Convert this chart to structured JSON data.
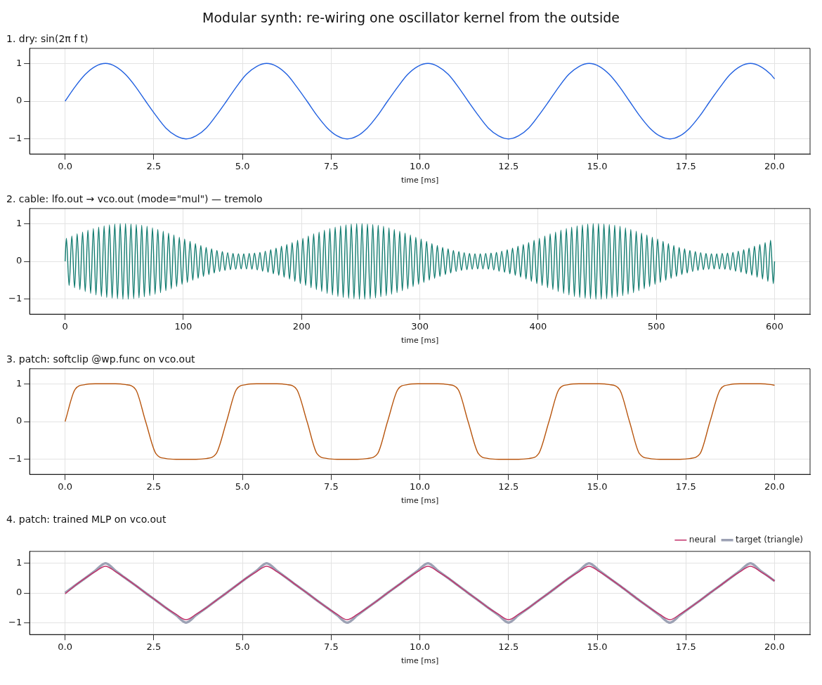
{
  "chart_data": [
    {
      "type": "line",
      "title": "1. dry: sin(2π f t)",
      "xlabel": "time [ms]",
      "annotations": [
        "Modular synth: re-wiring one oscillator kernel from the outside"
      ],
      "x": [
        0,
        0.28,
        0.57,
        0.85,
        1.14,
        1.42,
        1.7,
        1.99,
        2.27,
        2.56,
        2.84,
        3.13,
        3.41,
        3.69,
        3.98,
        4.26,
        4.55,
        4.83,
        5.11,
        5.4,
        5.68,
        5.97,
        6.25,
        6.53,
        6.82,
        7.1,
        7.39,
        7.67,
        7.95,
        8.24,
        8.52,
        8.81,
        9.09,
        9.38,
        9.66,
        9.94,
        10.23,
        10.51,
        10.8,
        11.08,
        11.36,
        11.65,
        11.93,
        12.22,
        12.5,
        12.78,
        13.07,
        13.35,
        13.64,
        13.92,
        14.2,
        14.49,
        14.77,
        15.06,
        15.34,
        15.63,
        15.91,
        16.19,
        16.48,
        16.76,
        17.05,
        17.33,
        17.61,
        17.9,
        18.18,
        18.47,
        18.75,
        19.03,
        19.32,
        19.6,
        19.89,
        20.0
      ],
      "series": [
        {
          "color": "#2160e0",
          "values": [
            0,
            0.38,
            0.71,
            0.92,
            1,
            0.92,
            0.71,
            0.38,
            0,
            -0.38,
            -0.71,
            -0.92,
            -1,
            -0.92,
            -0.71,
            -0.38,
            0,
            0.38,
            0.71,
            0.92,
            1,
            0.92,
            0.71,
            0.38,
            0,
            -0.38,
            -0.71,
            -0.92,
            -1,
            -0.92,
            -0.71,
            -0.38,
            0,
            0.38,
            0.71,
            0.92,
            1,
            0.92,
            0.71,
            0.38,
            0,
            -0.38,
            -0.71,
            -0.92,
            -1,
            -0.92,
            -0.71,
            -0.38,
            0,
            0.38,
            0.71,
            0.92,
            1,
            0.92,
            0.71,
            0.38,
            0,
            -0.38,
            -0.71,
            -0.92,
            -1,
            -0.92,
            -0.71,
            -0.38,
            0,
            0.38,
            0.71,
            0.92,
            1,
            0.92,
            0.71,
            0.59
          ]
        }
      ],
      "xlim": [
        -1,
        21
      ],
      "xticks": [
        {
          "value": 0,
          "label": "0.0"
        },
        {
          "value": 2.5,
          "label": "2.5"
        },
        {
          "value": 5,
          "label": "5.0"
        },
        {
          "value": 7.5,
          "label": "7.5"
        },
        {
          "value": 10,
          "label": "10.0"
        },
        {
          "value": 12.5,
          "label": "12.5"
        },
        {
          "value": 15,
          "label": "15.0"
        },
        {
          "value": 17.5,
          "label": "17.5"
        },
        {
          "value": 20,
          "label": "20.0"
        }
      ],
      "ylim": [
        -1.4,
        1.4
      ],
      "yticks": [
        -1,
        0,
        1
      ],
      "grid": true
    },
    {
      "type": "line",
      "title": "2. cable: lfo.out → vco.out (mode=\"mul\") — tremolo",
      "xlabel": "time [ms]",
      "x": [
        0,
        1.1,
        3.4,
        5.7,
        8.0,
        10.2,
        12.5,
        14.8,
        17.0,
        19.3,
        21.6,
        23.9,
        26.1,
        28.4,
        30.7,
        33.0,
        35.2,
        37.5,
        39.8,
        42.0,
        44.3,
        46.6,
        48.9,
        51.1,
        53.4,
        55.7,
        58.0,
        60.2,
        62.5,
        64.8,
        67.0,
        69.3,
        71.6,
        73.9,
        76.1,
        78.4,
        80.7,
        83.0,
        85.2,
        87.5,
        89.8,
        92.0,
        94.3,
        96.6,
        98.9,
        101.1,
        103.4,
        105.7,
        108.0,
        110.2,
        112.5,
        114.8,
        117.0,
        119.3,
        121.6,
        123.9,
        126.1,
        128.4,
        130.7,
        133.0,
        135.2,
        137.5,
        139.8,
        142.0,
        144.3,
        146.6,
        148.9,
        151.1,
        153.4,
        155.7,
        158.0,
        160.2,
        162.5,
        164.8,
        167.0,
        169.3,
        171.6,
        173.9,
        176.1,
        178.4,
        180.7,
        183.0,
        185.2,
        187.5,
        189.8,
        192.0,
        194.3,
        196.6,
        198.9,
        201.1,
        203.4,
        205.7,
        208.0,
        210.2,
        212.5,
        214.8,
        217.0,
        219.3,
        221.6,
        223.9,
        226.1,
        228.4,
        230.7,
        233.0,
        235.2,
        237.5,
        239.8,
        242.0,
        244.3,
        246.6,
        248.9,
        251.1,
        253.4,
        255.7,
        258.0,
        260.2,
        262.5,
        264.8,
        267.0,
        269.3,
        271.6,
        273.9,
        276.1,
        278.4,
        280.7,
        283.0,
        285.2,
        287.5,
        289.8,
        292.0,
        294.3,
        296.6,
        298.9,
        301.1,
        303.4,
        305.7,
        308.0,
        310.2,
        312.5,
        314.8,
        317.0,
        319.3,
        321.6,
        323.9,
        326.1,
        328.4,
        330.7,
        333.0,
        335.2,
        337.5,
        339.8,
        342.0,
        344.3,
        346.6,
        348.9,
        351.1,
        353.4,
        355.7,
        358.0,
        360.2,
        362.5,
        364.8,
        367.0,
        369.3,
        371.6,
        373.9,
        376.1,
        378.4,
        380.7,
        383.0,
        385.2,
        387.5,
        389.8,
        392.0,
        394.3,
        396.6,
        398.9,
        401.1,
        403.4,
        405.7,
        408.0,
        410.2,
        412.5,
        414.8,
        417.0,
        419.3,
        421.6,
        423.9,
        426.1,
        428.4,
        430.7,
        433.0,
        435.2,
        437.5,
        439.8,
        442.0,
        444.3,
        446.6,
        448.9,
        451.1,
        453.4,
        455.7,
        458.0,
        460.2,
        462.5,
        464.8,
        467.0,
        469.3,
        471.6,
        473.9,
        476.1,
        478.4,
        480.7,
        483.0,
        485.2,
        487.5,
        489.8,
        492.0,
        494.3,
        496.6,
        498.9,
        501.1,
        503.4,
        505.7,
        508.0,
        510.2,
        512.5,
        514.8,
        517.0,
        519.3,
        521.6,
        523.9,
        526.1,
        528.4,
        530.7,
        533.0,
        535.2,
        537.5,
        539.8,
        542.0,
        544.3,
        546.6,
        548.9,
        551.1,
        553.4,
        555.7,
        558.0,
        560.2,
        562.5,
        564.8,
        567.0,
        569.3,
        571.6,
        573.9,
        576.1,
        578.4,
        580.7,
        583.0,
        585.2,
        587.5,
        589.8,
        592.0,
        594.3,
        596.6,
        598.9,
        600
      ],
      "series": [
        {
          "color": "#0f7a6e",
          "values": [
            0,
            0.61,
            -0.64,
            0.67,
            -0.7,
            0.73,
            -0.75,
            0.78,
            -0.8,
            0.83,
            -0.85,
            0.87,
            -0.89,
            0.91,
            -0.93,
            0.94,
            -0.96,
            0.97,
            -0.98,
            0.99,
            -0.99,
            1.0,
            -1.0,
            1.0,
            -1.0,
            0.99,
            -0.99,
            0.98,
            -0.97,
            0.96,
            -0.94,
            0.93,
            -0.91,
            0.89,
            -0.87,
            0.85,
            -0.83,
            0.8,
            -0.78,
            0.75,
            -0.73,
            0.7,
            -0.67,
            0.64,
            -0.61,
            0.59,
            -0.56,
            0.53,
            -0.5,
            0.47,
            -0.45,
            0.42,
            -0.4,
            0.37,
            -0.35,
            0.33,
            -0.31,
            0.29,
            -0.27,
            0.26,
            -0.24,
            0.23,
            -0.22,
            0.21,
            -0.21,
            0.2,
            -0.2,
            0.2,
            -0.2,
            0.21,
            -0.21,
            0.22,
            -0.23,
            0.24,
            -0.26,
            0.27,
            -0.29,
            0.31,
            -0.33,
            0.35,
            -0.37,
            0.4,
            -0.42,
            0.45,
            -0.47,
            0.5,
            -0.53,
            0.56,
            -0.59,
            0.61,
            -0.64,
            0.67,
            -0.7,
            0.73,
            -0.75,
            0.78,
            -0.8,
            0.83,
            -0.85,
            0.87,
            -0.89,
            0.91,
            -0.93,
            0.94,
            -0.96,
            0.97,
            -0.98,
            0.99,
            -0.99,
            1.0,
            -1.0,
            1.0,
            -1.0,
            0.99,
            -0.99,
            0.98,
            -0.97,
            0.96,
            -0.94,
            0.93,
            -0.91,
            0.89,
            -0.87,
            0.85,
            -0.83,
            0.8,
            -0.78,
            0.75,
            -0.73,
            0.7,
            -0.67,
            0.64,
            -0.61,
            0.59,
            -0.56,
            0.53,
            -0.5,
            0.47,
            -0.45,
            0.42,
            -0.4,
            0.37,
            -0.35,
            0.33,
            -0.31,
            0.29,
            -0.27,
            0.26,
            -0.24,
            0.23,
            -0.22,
            0.21,
            -0.21,
            0.2,
            -0.2,
            0.2,
            -0.2,
            0.21,
            -0.21,
            0.22,
            -0.23,
            0.24,
            -0.26,
            0.27,
            -0.29,
            0.31,
            -0.33,
            0.35,
            -0.37,
            0.4,
            -0.42,
            0.45,
            -0.47,
            0.5,
            -0.53,
            0.56,
            -0.59,
            0.61,
            -0.64,
            0.67,
            -0.7,
            0.73,
            -0.75,
            0.78,
            -0.8,
            0.83,
            -0.85,
            0.87,
            -0.89,
            0.91,
            -0.93,
            0.94,
            -0.96,
            0.97,
            -0.98,
            0.99,
            -0.99,
            1.0,
            -1.0,
            1.0,
            -1.0,
            0.99,
            -0.99,
            0.98,
            -0.97,
            0.96,
            -0.94,
            0.93,
            -0.91,
            0.89,
            -0.87,
            0.85,
            -0.83,
            0.8,
            -0.78,
            0.75,
            -0.73,
            0.7,
            -0.67,
            0.64,
            -0.61,
            0.59,
            -0.56,
            0.53,
            -0.5,
            0.47,
            -0.45,
            0.42,
            -0.4,
            0.37,
            -0.35,
            0.33,
            -0.31,
            0.29,
            -0.27,
            0.26,
            -0.24,
            0.23,
            -0.22,
            0.21,
            -0.21,
            0.2,
            -0.2,
            0.2,
            -0.2,
            0.21,
            -0.21,
            0.22,
            -0.23,
            0.24,
            -0.26,
            0.27,
            -0.29,
            0.31,
            -0.33,
            0.35,
            -0.37,
            0.4,
            -0.42,
            0.45,
            -0.47,
            0.5,
            -0.53,
            0.56,
            -0.59,
            0
          ]
        }
      ],
      "xlim": [
        -30,
        630
      ],
      "xticks": [
        0,
        100,
        200,
        300,
        400,
        500,
        600
      ],
      "ylim": [
        -1.4,
        1.4
      ],
      "yticks": [
        -1,
        0,
        1
      ],
      "grid": true
    },
    {
      "type": "line",
      "title": "3. patch: softclip @wp.func on vco.out",
      "xlabel": "time [ms]",
      "x": [
        0,
        0.28,
        0.57,
        0.85,
        1.14,
        1.42,
        1.7,
        1.99,
        2.27,
        2.56,
        2.84,
        3.13,
        3.41,
        3.69,
        3.98,
        4.26,
        4.55,
        4.83,
        5.11,
        5.4,
        5.68,
        5.97,
        6.25,
        6.53,
        6.82,
        7.1,
        7.39,
        7.67,
        7.95,
        8.24,
        8.52,
        8.81,
        9.09,
        9.38,
        9.66,
        9.94,
        10.23,
        10.51,
        10.8,
        11.08,
        11.36,
        11.65,
        11.93,
        12.22,
        12.5,
        12.78,
        13.07,
        13.35,
        13.64,
        13.92,
        14.2,
        14.49,
        14.77,
        15.06,
        15.34,
        15.63,
        15.91,
        16.19,
        16.48,
        16.76,
        17.05,
        17.33,
        17.61,
        17.9,
        18.18,
        18.47,
        18.75,
        19.03,
        19.32,
        19.6,
        19.89,
        20.0
      ],
      "series": [
        {
          "color": "#b8560f",
          "values": [
            0,
            0.85,
            0.98,
            1,
            1,
            1,
            0.98,
            0.85,
            0,
            -0.85,
            -0.98,
            -1,
            -1,
            -1,
            -0.98,
            -0.85,
            0,
            0.85,
            0.98,
            1,
            1,
            1,
            0.98,
            0.85,
            0,
            -0.85,
            -0.98,
            -1,
            -1,
            -1,
            -0.98,
            -0.85,
            0,
            0.85,
            0.98,
            1,
            1,
            1,
            0.98,
            0.85,
            0,
            -0.85,
            -0.98,
            -1,
            -1,
            -1,
            -0.98,
            -0.85,
            0,
            0.85,
            0.98,
            1,
            1,
            1,
            0.98,
            0.85,
            0,
            -0.85,
            -0.98,
            -1,
            -1,
            -1,
            -0.98,
            -0.85,
            0,
            0.85,
            0.98,
            1,
            1,
            1,
            0.98,
            0.96
          ]
        }
      ],
      "xlim": [
        -1,
        21
      ],
      "xticks": [
        {
          "value": 0,
          "label": "0.0"
        },
        {
          "value": 2.5,
          "label": "2.5"
        },
        {
          "value": 5,
          "label": "5.0"
        },
        {
          "value": 7.5,
          "label": "7.5"
        },
        {
          "value": 10,
          "label": "10.0"
        },
        {
          "value": 12.5,
          "label": "12.5"
        },
        {
          "value": 15,
          "label": "15.0"
        },
        {
          "value": 17.5,
          "label": "17.5"
        },
        {
          "value": 20,
          "label": "20.0"
        }
      ],
      "ylim": [
        -1.4,
        1.4
      ],
      "yticks": [
        -1,
        0,
        1
      ],
      "grid": true
    },
    {
      "type": "line",
      "title": "4. patch: trained MLP on vco.out",
      "xlabel": "time [ms]",
      "x": [
        0,
        0.28,
        0.57,
        0.85,
        1.14,
        1.42,
        1.7,
        1.99,
        2.27,
        2.56,
        2.84,
        3.13,
        3.41,
        3.69,
        3.98,
        4.26,
        4.55,
        4.83,
        5.11,
        5.4,
        5.68,
        5.97,
        6.25,
        6.53,
        6.82,
        7.1,
        7.39,
        7.67,
        7.95,
        8.24,
        8.52,
        8.81,
        9.09,
        9.38,
        9.66,
        9.94,
        10.23,
        10.51,
        10.8,
        11.08,
        11.36,
        11.65,
        11.93,
        12.22,
        12.5,
        12.78,
        13.07,
        13.35,
        13.64,
        13.92,
        14.2,
        14.49,
        14.77,
        15.06,
        15.34,
        15.63,
        15.91,
        16.19,
        16.48,
        16.76,
        17.05,
        17.33,
        17.61,
        17.9,
        18.18,
        18.47,
        18.75,
        19.03,
        19.32,
        19.6,
        19.89,
        20.0
      ],
      "series": [
        {
          "name": "target (triangle)",
          "color": "#9ca1b4",
          "values": [
            0,
            0.25,
            0.5,
            0.75,
            1,
            0.75,
            0.5,
            0.25,
            0,
            -0.25,
            -0.5,
            -0.75,
            -1,
            -0.75,
            -0.5,
            -0.25,
            0,
            0.25,
            0.5,
            0.75,
            1,
            0.75,
            0.5,
            0.25,
            0,
            -0.25,
            -0.5,
            -0.75,
            -1,
            -0.75,
            -0.5,
            -0.25,
            0,
            0.25,
            0.5,
            0.75,
            1,
            0.75,
            0.5,
            0.25,
            0,
            -0.25,
            -0.5,
            -0.75,
            -1,
            -0.75,
            -0.5,
            -0.25,
            0,
            0.25,
            0.5,
            0.75,
            1,
            0.75,
            0.5,
            0.25,
            0,
            -0.25,
            -0.5,
            -0.75,
            -1,
            -0.75,
            -0.5,
            -0.25,
            0,
            0.25,
            0.5,
            0.75,
            1,
            0.75,
            0.5,
            0.4
          ]
        },
        {
          "name": "neural",
          "color": "#c2306a",
          "values": [
            -0.03,
            0.25,
            0.5,
            0.72,
            0.9,
            0.72,
            0.5,
            0.25,
            0,
            -0.25,
            -0.5,
            -0.72,
            -0.9,
            -0.72,
            -0.5,
            -0.25,
            0,
            0.25,
            0.5,
            0.72,
            0.9,
            0.72,
            0.5,
            0.25,
            0,
            -0.25,
            -0.5,
            -0.72,
            -0.9,
            -0.72,
            -0.5,
            -0.25,
            0,
            0.25,
            0.5,
            0.72,
            0.9,
            0.72,
            0.5,
            0.25,
            0,
            -0.25,
            -0.5,
            -0.72,
            -0.9,
            -0.72,
            -0.5,
            -0.25,
            0,
            0.25,
            0.5,
            0.72,
            0.9,
            0.72,
            0.5,
            0.25,
            0,
            -0.25,
            -0.5,
            -0.72,
            -0.9,
            -0.72,
            -0.5,
            -0.25,
            0,
            0.25,
            0.5,
            0.72,
            0.9,
            0.72,
            0.5,
            0.4
          ]
        }
      ],
      "xlim": [
        -1,
        21
      ],
      "xticks": [
        {
          "value": 0,
          "label": "0.0"
        },
        {
          "value": 2.5,
          "label": "2.5"
        },
        {
          "value": 5,
          "label": "5.0"
        },
        {
          "value": 7.5,
          "label": "7.5"
        },
        {
          "value": 10,
          "label": "10.0"
        },
        {
          "value": 12.5,
          "label": "12.5"
        },
        {
          "value": 15,
          "label": "15.0"
        },
        {
          "value": 17.5,
          "label": "17.5"
        },
        {
          "value": 20,
          "label": "20.0"
        }
      ],
      "ylim": [
        -1.4,
        1.4
      ],
      "yticks": [
        -1,
        0,
        1
      ],
      "grid": true,
      "legend": "top right"
    }
  ]
}
